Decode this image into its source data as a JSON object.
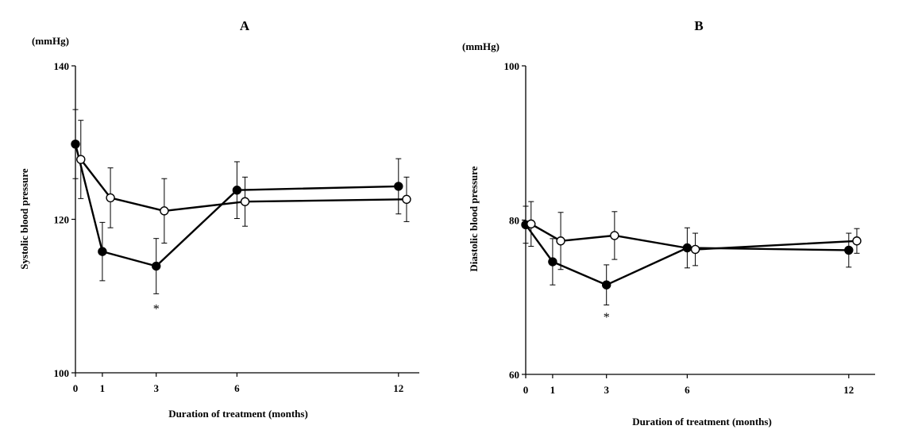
{
  "chart_data": [
    {
      "type": "line",
      "title": "A",
      "unit": "(mmHg)",
      "xlabel": "Duration of treatment (months)",
      "ylabel": "Systolic blood pressure",
      "xlim": [
        0,
        13
      ],
      "ylim": [
        100,
        140
      ],
      "x_ticks": [
        0,
        1,
        3,
        6,
        12
      ],
      "y_ticks": [
        100,
        120,
        140
      ],
      "series": [
        {
          "name": "filled",
          "marker": "filled-circle",
          "x": [
            0,
            1,
            3,
            6,
            12
          ],
          "values": [
            129.8,
            115.8,
            113.9,
            123.8,
            124.3
          ],
          "err": [
            4.5,
            3.8,
            3.6,
            3.7,
            3.6
          ]
        },
        {
          "name": "open",
          "marker": "open-circle",
          "x": [
            0.2,
            1.3,
            3.3,
            6.3,
            12.3
          ],
          "values": [
            127.8,
            122.8,
            121.1,
            122.3,
            122.6
          ],
          "err": [
            5.1,
            3.9,
            4.2,
            3.2,
            2.9
          ]
        }
      ],
      "annotations": [
        {
          "text": "*",
          "x": 3,
          "y": 107.8
        }
      ]
    },
    {
      "type": "line",
      "title": "B",
      "unit": "(mmHg)",
      "xlabel": "Duration of treatment (months)",
      "ylabel": "Diastolic blood pressure",
      "xlim": [
        0,
        13
      ],
      "ylim": [
        60,
        100
      ],
      "x_ticks": [
        0,
        1,
        3,
        6,
        12
      ],
      "y_ticks": [
        60,
        80,
        100
      ],
      "series": [
        {
          "name": "filled",
          "marker": "filled-circle",
          "x": [
            0,
            1,
            3,
            6,
            12
          ],
          "values": [
            79.4,
            74.6,
            71.6,
            76.4,
            76.1
          ],
          "err": [
            2.4,
            3.0,
            2.6,
            2.6,
            2.2
          ]
        },
        {
          "name": "open",
          "marker": "open-circle",
          "x": [
            0.2,
            1.3,
            3.3,
            6.3,
            12.3
          ],
          "values": [
            79.5,
            77.3,
            78.0,
            76.2,
            77.3
          ],
          "err": [
            2.9,
            3.7,
            3.1,
            2.1,
            1.6
          ]
        }
      ],
      "annotations": [
        {
          "text": "*",
          "x": 3,
          "y": 66.9
        }
      ]
    }
  ]
}
